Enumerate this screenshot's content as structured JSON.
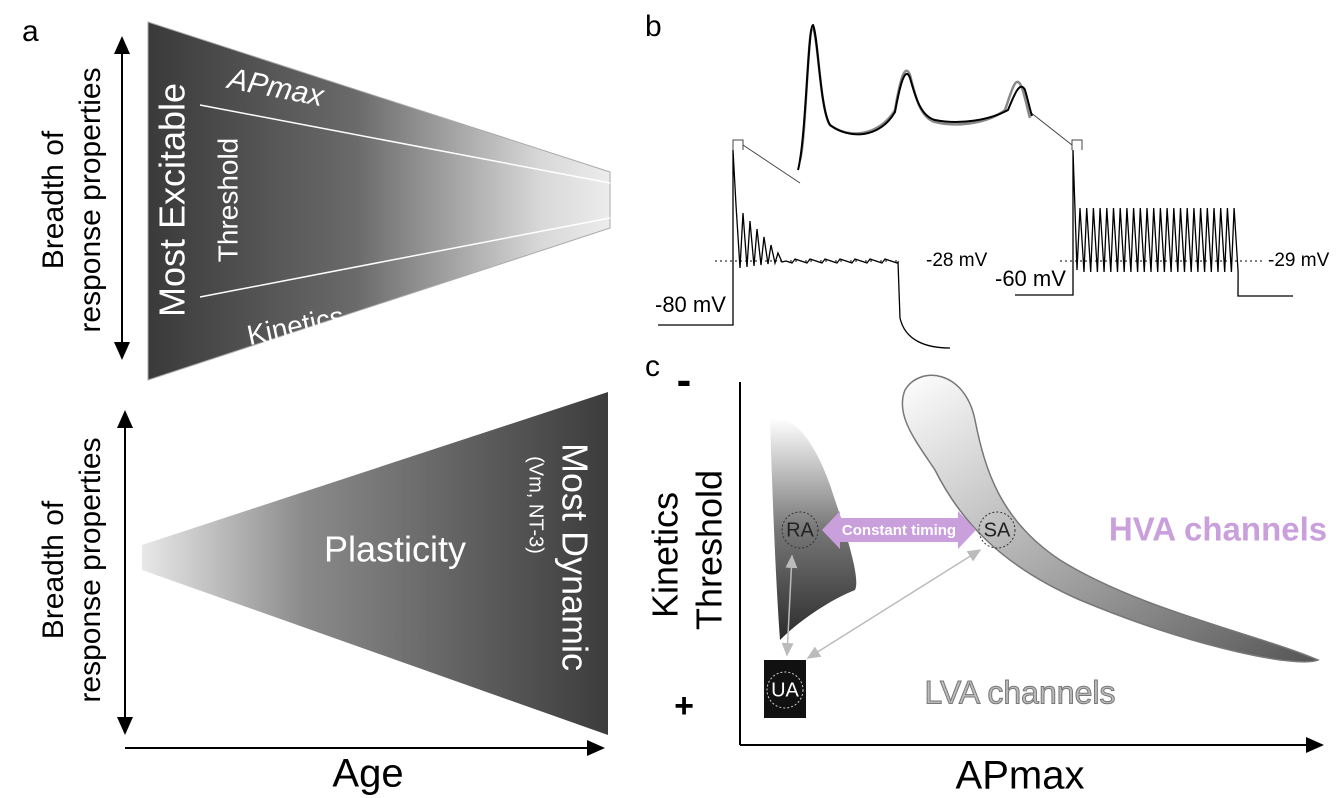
{
  "panel_a": {
    "label": "a",
    "top_axis_label": [
      "Breadth of",
      "response properties"
    ],
    "top_main": "Most Excitable",
    "top_upper": "APmax",
    "top_middle": "Threshold",
    "top_lower": "Kinetics",
    "bottom_axis_label": [
      "Breadth of",
      "response properties"
    ],
    "bottom_main": "Plasticity",
    "bottom_right": "Most Dynamic",
    "bottom_right_note": "(Vm, NT-3)",
    "x_axis_label": "Age"
  },
  "panel_b": {
    "label": "b",
    "left_baseline": "-80 mV",
    "left_level": "-28 mV",
    "right_baseline": "-60 mV",
    "right_level": "-29 mV"
  },
  "panel_c": {
    "label": "c",
    "y_top": "-",
    "y_bottom": "+",
    "y_axis_label": [
      "Kinetics",
      "Threshold"
    ],
    "x_axis_label": "APmax",
    "ra": "RA",
    "sa": "SA",
    "ua": "UA",
    "arrow_label": "Constant timing",
    "hva": "HVA channels",
    "lva": "LVA channels"
  }
}
